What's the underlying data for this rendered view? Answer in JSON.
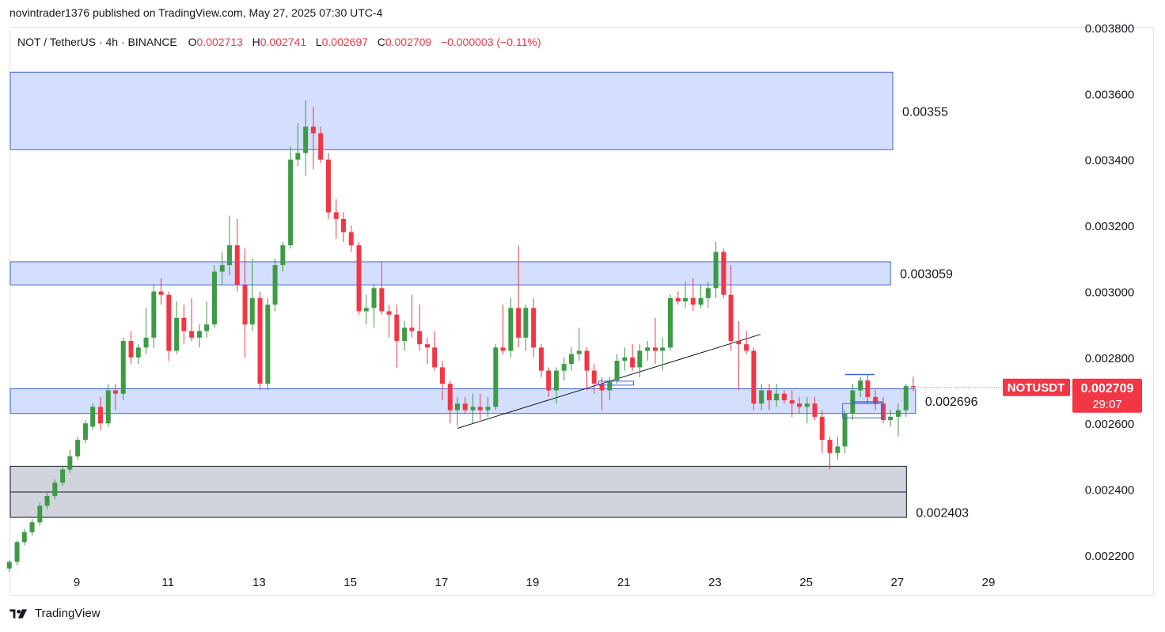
{
  "header": {
    "published_line": "novintrader1376 published on TradingView.com, May 27, 2025 07:30 UTC-4"
  },
  "legend": {
    "symbol": "NOT / TetherUS · 4h · BINANCE",
    "o_label": "O",
    "o_value": "0.002713",
    "h_label": "H",
    "h_value": "0.002741",
    "l_label": "L",
    "l_value": "0.002697",
    "c_label": "C",
    "c_value": "0.002709",
    "change": "−0.000003 (−0.11%)"
  },
  "footer": {
    "brand": "TradingView",
    "logo_icon": "tradingview-logo-icon"
  },
  "colors": {
    "up": "#26a69a",
    "upCandle": "#3d9a45",
    "down": "#f23645",
    "zone_fill": "#d4dffd",
    "zone_border": "#3e63dd",
    "gray_fill": "#d1d4dc",
    "gray_border": "#131722",
    "axis_text": "#131722"
  },
  "chart_data": {
    "type": "candlestick",
    "title": "NOT / TetherUS · 4h · BINANCE",
    "ylim": [
      0.00208,
      0.0038
    ],
    "x_day_range": [
      7.3,
      29.4
    ],
    "y_ticks": [
      "0.003800",
      "0.003600",
      "0.003400",
      "0.003200",
      "0.003000",
      "0.002800",
      "0.002600",
      "0.002400",
      "0.002200"
    ],
    "y_tick_values": [
      0.0038,
      0.0036,
      0.0034,
      0.0032,
      0.003,
      0.0028,
      0.0026,
      0.0024,
      0.0022
    ],
    "x_ticks": [
      "9",
      "11",
      "13",
      "15",
      "17",
      "19",
      "21",
      "23",
      "25",
      "27",
      "29"
    ],
    "x_tick_days": [
      9,
      11,
      13,
      15,
      17,
      19,
      21,
      23,
      25,
      27,
      29
    ],
    "zones": [
      {
        "name": "zone-0.00355",
        "label": "0.00355",
        "top": 0.003665,
        "bottom": 0.00343,
        "x_start": 7.35,
        "x_end": 26.9,
        "style": "blue"
      },
      {
        "name": "zone-0.003059",
        "label": "0.003059",
        "top": 0.00309,
        "bottom": 0.00302,
        "x_start": 7.35,
        "x_end": 26.85,
        "style": "blue"
      },
      {
        "name": "zone-0.002696",
        "label": "0.002696",
        "top": 0.002705,
        "bottom": 0.00263,
        "x_start": 7.35,
        "x_end": 27.4,
        "style": "blue"
      },
      {
        "name": "zone-0.002403",
        "label": "0.002403",
        "top": 0.00247,
        "bottom": 0.002315,
        "x_start": 7.35,
        "x_end": 27.2,
        "style": "gray"
      }
    ],
    "trendlines": [
      {
        "from": [
          17.35,
          0.002585
        ],
        "to": [
          24.0,
          0.00287
        ]
      },
      {
        "from": [
          7.35,
          0.002392
        ],
        "to": [
          27.2,
          0.002392
        ]
      }
    ],
    "price_label": {
      "symbol": "NOTUSDT",
      "price": "0.002709",
      "countdown": "29:07",
      "value": 0.002709
    },
    "candles": [
      {
        "t": 7.35,
        "o": 0.00215,
        "h": 0.00216,
        "l": 0.00214,
        "c": 0.00216
      },
      {
        "t": 7.52,
        "o": 0.00216,
        "h": 0.002185,
        "l": 0.00215,
        "c": 0.00218
      },
      {
        "t": 7.69,
        "o": 0.00218,
        "h": 0.002245,
        "l": 0.00217,
        "c": 0.00224
      },
      {
        "t": 7.85,
        "o": 0.00224,
        "h": 0.00228,
        "l": 0.00223,
        "c": 0.00227
      },
      {
        "t": 8.02,
        "o": 0.00227,
        "h": 0.00231,
        "l": 0.00226,
        "c": 0.0023
      },
      {
        "t": 8.19,
        "o": 0.0023,
        "h": 0.00236,
        "l": 0.00229,
        "c": 0.00235
      },
      {
        "t": 8.35,
        "o": 0.00235,
        "h": 0.00239,
        "l": 0.00234,
        "c": 0.00238
      },
      {
        "t": 8.52,
        "o": 0.00238,
        "h": 0.00243,
        "l": 0.00237,
        "c": 0.00242
      },
      {
        "t": 8.69,
        "o": 0.00242,
        "h": 0.00247,
        "l": 0.00241,
        "c": 0.00246
      },
      {
        "t": 8.85,
        "o": 0.00246,
        "h": 0.00252,
        "l": 0.00245,
        "c": 0.0025
      },
      {
        "t": 9.02,
        "o": 0.0025,
        "h": 0.00256,
        "l": 0.00249,
        "c": 0.00255
      },
      {
        "t": 9.19,
        "o": 0.00255,
        "h": 0.00261,
        "l": 0.00254,
        "c": 0.0026
      },
      {
        "t": 9.35,
        "o": 0.00259,
        "h": 0.00266,
        "l": 0.00258,
        "c": 0.00265
      },
      {
        "t": 9.52,
        "o": 0.00265,
        "h": 0.00268,
        "l": 0.00258,
        "c": 0.0026
      },
      {
        "t": 9.69,
        "o": 0.0026,
        "h": 0.00272,
        "l": 0.00259,
        "c": 0.0027
      },
      {
        "t": 9.85,
        "o": 0.0027,
        "h": 0.00272,
        "l": 0.00264,
        "c": 0.00269
      },
      {
        "t": 10.02,
        "o": 0.00269,
        "h": 0.00286,
        "l": 0.00267,
        "c": 0.00285
      },
      {
        "t": 10.19,
        "o": 0.00285,
        "h": 0.00288,
        "l": 0.00278,
        "c": 0.0028
      },
      {
        "t": 10.35,
        "o": 0.0028,
        "h": 0.00284,
        "l": 0.00278,
        "c": 0.00283
      },
      {
        "t": 10.52,
        "o": 0.00283,
        "h": 0.00295,
        "l": 0.00281,
        "c": 0.00286
      },
      {
        "t": 10.69,
        "o": 0.00286,
        "h": 0.00302,
        "l": 0.00283,
        "c": 0.003
      },
      {
        "t": 10.85,
        "o": 0.003,
        "h": 0.00304,
        "l": 0.00296,
        "c": 0.00299
      },
      {
        "t": 11.02,
        "o": 0.00299,
        "h": 0.003,
        "l": 0.00279,
        "c": 0.00282
      },
      {
        "t": 11.19,
        "o": 0.00282,
        "h": 0.00297,
        "l": 0.00281,
        "c": 0.00292
      },
      {
        "t": 11.35,
        "o": 0.00292,
        "h": 0.00296,
        "l": 0.00284,
        "c": 0.00288
      },
      {
        "t": 11.52,
        "o": 0.00288,
        "h": 0.00298,
        "l": 0.00285,
        "c": 0.00286
      },
      {
        "t": 11.69,
        "o": 0.00286,
        "h": 0.0029,
        "l": 0.00283,
        "c": 0.00288
      },
      {
        "t": 11.85,
        "o": 0.00288,
        "h": 0.00297,
        "l": 0.00286,
        "c": 0.0029
      },
      {
        "t": 12.02,
        "o": 0.0029,
        "h": 0.00308,
        "l": 0.00289,
        "c": 0.00306
      },
      {
        "t": 12.19,
        "o": 0.00306,
        "h": 0.00312,
        "l": 0.00302,
        "c": 0.00308
      },
      {
        "t": 12.35,
        "o": 0.00308,
        "h": 0.00323,
        "l": 0.00305,
        "c": 0.00314
      },
      {
        "t": 12.52,
        "o": 0.00314,
        "h": 0.00322,
        "l": 0.003,
        "c": 0.00302
      },
      {
        "t": 12.69,
        "o": 0.00302,
        "h": 0.00313,
        "l": 0.0028,
        "c": 0.0029
      },
      {
        "t": 12.85,
        "o": 0.0029,
        "h": 0.0031,
        "l": 0.00288,
        "c": 0.00298
      },
      {
        "t": 13.02,
        "o": 0.00298,
        "h": 0.003,
        "l": 0.0027,
        "c": 0.00272
      },
      {
        "t": 13.19,
        "o": 0.00272,
        "h": 0.00298,
        "l": 0.0027,
        "c": 0.00296
      },
      {
        "t": 13.35,
        "o": 0.00296,
        "h": 0.0031,
        "l": 0.00294,
        "c": 0.00308
      },
      {
        "t": 13.52,
        "o": 0.00308,
        "h": 0.00315,
        "l": 0.00306,
        "c": 0.00314
      },
      {
        "t": 13.69,
        "o": 0.00314,
        "h": 0.00344,
        "l": 0.00313,
        "c": 0.0034
      },
      {
        "t": 13.85,
        "o": 0.0034,
        "h": 0.00351,
        "l": 0.00338,
        "c": 0.00342
      },
      {
        "t": 14.02,
        "o": 0.00342,
        "h": 0.00358,
        "l": 0.00335,
        "c": 0.0035
      },
      {
        "t": 14.19,
        "o": 0.0035,
        "h": 0.00356,
        "l": 0.00337,
        "c": 0.00348
      },
      {
        "t": 14.35,
        "o": 0.00348,
        "h": 0.0035,
        "l": 0.00339,
        "c": 0.0034
      },
      {
        "t": 14.52,
        "o": 0.0034,
        "h": 0.00342,
        "l": 0.00322,
        "c": 0.00324
      },
      {
        "t": 14.69,
        "o": 0.00324,
        "h": 0.00328,
        "l": 0.00316,
        "c": 0.00322
      },
      {
        "t": 14.85,
        "o": 0.00322,
        "h": 0.00324,
        "l": 0.00315,
        "c": 0.00318
      },
      {
        "t": 15.02,
        "o": 0.00318,
        "h": 0.0032,
        "l": 0.00312,
        "c": 0.00314
      },
      {
        "t": 15.19,
        "o": 0.00314,
        "h": 0.00315,
        "l": 0.00293,
        "c": 0.00294
      },
      {
        "t": 15.35,
        "o": 0.00294,
        "h": 0.00299,
        "l": 0.0029,
        "c": 0.00295
      },
      {
        "t": 15.52,
        "o": 0.00295,
        "h": 0.00302,
        "l": 0.00289,
        "c": 0.00301
      },
      {
        "t": 15.69,
        "o": 0.00301,
        "h": 0.00309,
        "l": 0.00293,
        "c": 0.00294
      },
      {
        "t": 15.85,
        "o": 0.00294,
        "h": 0.00296,
        "l": 0.00286,
        "c": 0.00293
      },
      {
        "t": 16.02,
        "o": 0.00293,
        "h": 0.00296,
        "l": 0.00277,
        "c": 0.00285
      },
      {
        "t": 16.19,
        "o": 0.00285,
        "h": 0.00291,
        "l": 0.00282,
        "c": 0.00289
      },
      {
        "t": 16.35,
        "o": 0.00289,
        "h": 0.00299,
        "l": 0.00286,
        "c": 0.00288
      },
      {
        "t": 16.52,
        "o": 0.00288,
        "h": 0.00296,
        "l": 0.00282,
        "c": 0.00284
      },
      {
        "t": 16.69,
        "o": 0.00284,
        "h": 0.00286,
        "l": 0.00278,
        "c": 0.00283
      },
      {
        "t": 16.85,
        "o": 0.00283,
        "h": 0.00288,
        "l": 0.00276,
        "c": 0.00277
      },
      {
        "t": 17.02,
        "o": 0.00277,
        "h": 0.00279,
        "l": 0.00267,
        "c": 0.00272
      },
      {
        "t": 17.19,
        "o": 0.00272,
        "h": 0.00273,
        "l": 0.0026,
        "c": 0.00264
      },
      {
        "t": 17.35,
        "o": 0.00264,
        "h": 0.00268,
        "l": 0.00259,
        "c": 0.00266
      },
      {
        "t": 17.52,
        "o": 0.00266,
        "h": 0.00268,
        "l": 0.00263,
        "c": 0.00264
      },
      {
        "t": 17.69,
        "o": 0.00264,
        "h": 0.00269,
        "l": 0.0026,
        "c": 0.00265
      },
      {
        "t": 17.85,
        "o": 0.00265,
        "h": 0.00269,
        "l": 0.00261,
        "c": 0.00264
      },
      {
        "t": 18.02,
        "o": 0.00264,
        "h": 0.00268,
        "l": 0.00262,
        "c": 0.00265
      },
      {
        "t": 18.19,
        "o": 0.00265,
        "h": 0.00284,
        "l": 0.00264,
        "c": 0.00283
      },
      {
        "t": 18.35,
        "o": 0.00283,
        "h": 0.00296,
        "l": 0.00281,
        "c": 0.00282
      },
      {
        "t": 18.52,
        "o": 0.00282,
        "h": 0.00298,
        "l": 0.0028,
        "c": 0.00295
      },
      {
        "t": 18.69,
        "o": 0.00295,
        "h": 0.00314,
        "l": 0.00283,
        "c": 0.00286
      },
      {
        "t": 18.85,
        "o": 0.00286,
        "h": 0.00296,
        "l": 0.00282,
        "c": 0.00295
      },
      {
        "t": 19.02,
        "o": 0.00295,
        "h": 0.00298,
        "l": 0.0028,
        "c": 0.00283
      },
      {
        "t": 19.19,
        "o": 0.00283,
        "h": 0.00284,
        "l": 0.00274,
        "c": 0.00276
      },
      {
        "t": 19.35,
        "o": 0.00276,
        "h": 0.00277,
        "l": 0.00268,
        "c": 0.0027
      },
      {
        "t": 19.52,
        "o": 0.0027,
        "h": 0.00277,
        "l": 0.00266,
        "c": 0.00276
      },
      {
        "t": 19.69,
        "o": 0.00276,
        "h": 0.0028,
        "l": 0.00273,
        "c": 0.00278
      },
      {
        "t": 19.85,
        "o": 0.00278,
        "h": 0.00283,
        "l": 0.00276,
        "c": 0.00281
      },
      {
        "t": 20.02,
        "o": 0.00281,
        "h": 0.00289,
        "l": 0.00279,
        "c": 0.00282
      },
      {
        "t": 20.19,
        "o": 0.00282,
        "h": 0.00283,
        "l": 0.0027,
        "c": 0.00276
      },
      {
        "t": 20.35,
        "o": 0.00276,
        "h": 0.00278,
        "l": 0.00269,
        "c": 0.00272
      },
      {
        "t": 20.52,
        "o": 0.00272,
        "h": 0.00274,
        "l": 0.00264,
        "c": 0.0027
      },
      {
        "t": 20.69,
        "o": 0.0027,
        "h": 0.00274,
        "l": 0.00267,
        "c": 0.00273
      },
      {
        "t": 20.85,
        "o": 0.00273,
        "h": 0.00281,
        "l": 0.00272,
        "c": 0.00279
      },
      {
        "t": 21.02,
        "o": 0.00279,
        "h": 0.00283,
        "l": 0.00276,
        "c": 0.0028
      },
      {
        "t": 21.19,
        "o": 0.0028,
        "h": 0.00284,
        "l": 0.00276,
        "c": 0.00277
      },
      {
        "t": 21.35,
        "o": 0.00277,
        "h": 0.00284,
        "l": 0.00274,
        "c": 0.00282
      },
      {
        "t": 21.52,
        "o": 0.00282,
        "h": 0.00285,
        "l": 0.00279,
        "c": 0.00283
      },
      {
        "t": 21.69,
        "o": 0.00283,
        "h": 0.00292,
        "l": 0.00278,
        "c": 0.00282
      },
      {
        "t": 21.85,
        "o": 0.00282,
        "h": 0.00286,
        "l": 0.00276,
        "c": 0.00283
      },
      {
        "t": 22.02,
        "o": 0.00283,
        "h": 0.00299,
        "l": 0.00282,
        "c": 0.00298
      },
      {
        "t": 22.19,
        "o": 0.00298,
        "h": 0.003,
        "l": 0.00296,
        "c": 0.00297
      },
      {
        "t": 22.35,
        "o": 0.00297,
        "h": 0.00303,
        "l": 0.00295,
        "c": 0.00298
      },
      {
        "t": 22.52,
        "o": 0.00298,
        "h": 0.00304,
        "l": 0.00294,
        "c": 0.00296
      },
      {
        "t": 22.69,
        "o": 0.00296,
        "h": 0.00302,
        "l": 0.00295,
        "c": 0.00298
      },
      {
        "t": 22.85,
        "o": 0.00298,
        "h": 0.00303,
        "l": 0.00295,
        "c": 0.00301
      },
      {
        "t": 23.02,
        "o": 0.00301,
        "h": 0.00315,
        "l": 0.00298,
        "c": 0.00312
      },
      {
        "t": 23.19,
        "o": 0.00312,
        "h": 0.00313,
        "l": 0.00298,
        "c": 0.00299
      },
      {
        "t": 23.35,
        "o": 0.00299,
        "h": 0.00308,
        "l": 0.00282,
        "c": 0.00285
      },
      {
        "t": 23.52,
        "o": 0.00285,
        "h": 0.00291,
        "l": 0.0027,
        "c": 0.00284
      },
      {
        "t": 23.69,
        "o": 0.00284,
        "h": 0.00288,
        "l": 0.00281,
        "c": 0.00282
      },
      {
        "t": 23.85,
        "o": 0.00282,
        "h": 0.00283,
        "l": 0.00264,
        "c": 0.00266
      },
      {
        "t": 24.02,
        "o": 0.00266,
        "h": 0.00272,
        "l": 0.00264,
        "c": 0.0027
      },
      {
        "t": 24.19,
        "o": 0.0027,
        "h": 0.00272,
        "l": 0.00264,
        "c": 0.00267
      },
      {
        "t": 24.35,
        "o": 0.00267,
        "h": 0.00272,
        "l": 0.00265,
        "c": 0.00269
      },
      {
        "t": 24.52,
        "o": 0.00269,
        "h": 0.0027,
        "l": 0.00266,
        "c": 0.00267
      },
      {
        "t": 24.69,
        "o": 0.00267,
        "h": 0.0027,
        "l": 0.00262,
        "c": 0.00266
      },
      {
        "t": 24.85,
        "o": 0.00266,
        "h": 0.00268,
        "l": 0.00263,
        "c": 0.00265
      },
      {
        "t": 25.02,
        "o": 0.00265,
        "h": 0.00268,
        "l": 0.0026,
        "c": 0.00266
      },
      {
        "t": 25.19,
        "o": 0.00266,
        "h": 0.00268,
        "l": 0.00261,
        "c": 0.00262
      },
      {
        "t": 25.35,
        "o": 0.00262,
        "h": 0.00264,
        "l": 0.00251,
        "c": 0.00255
      },
      {
        "t": 25.52,
        "o": 0.00255,
        "h": 0.00256,
        "l": 0.00246,
        "c": 0.00251
      },
      {
        "t": 25.69,
        "o": 0.00251,
        "h": 0.00256,
        "l": 0.00249,
        "c": 0.00253
      },
      {
        "t": 25.85,
        "o": 0.00253,
        "h": 0.00264,
        "l": 0.00251,
        "c": 0.00263
      },
      {
        "t": 26.02,
        "o": 0.00263,
        "h": 0.00272,
        "l": 0.00261,
        "c": 0.0027
      },
      {
        "t": 26.19,
        "o": 0.0027,
        "h": 0.00274,
        "l": 0.00268,
        "c": 0.00273
      },
      {
        "t": 26.35,
        "o": 0.00273,
        "h": 0.00275,
        "l": 0.00266,
        "c": 0.00268
      },
      {
        "t": 26.52,
        "o": 0.00268,
        "h": 0.0027,
        "l": 0.00264,
        "c": 0.00266
      },
      {
        "t": 26.69,
        "o": 0.00266,
        "h": 0.00268,
        "l": 0.0026,
        "c": 0.00261
      },
      {
        "t": 26.85,
        "o": 0.00261,
        "h": 0.00264,
        "l": 0.00259,
        "c": 0.00262
      },
      {
        "t": 27.02,
        "o": 0.00262,
        "h": 0.00266,
        "l": 0.00256,
        "c": 0.00264
      },
      {
        "t": 27.19,
        "o": 0.00264,
        "h": 0.00272,
        "l": 0.00262,
        "c": 0.002713
      },
      {
        "t": 27.35,
        "o": 0.002713,
        "h": 0.002741,
        "l": 0.002697,
        "c": 0.002709
      }
    ]
  }
}
